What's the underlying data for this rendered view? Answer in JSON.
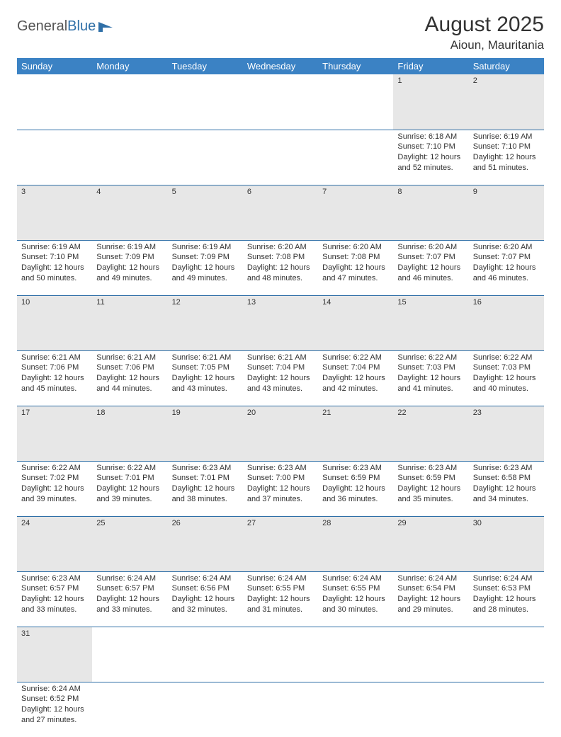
{
  "brand": {
    "part1": "General",
    "part2": "Blue"
  },
  "title": "August 2025",
  "location": "Aioun, Mauritania",
  "colors": {
    "header_bg": "#3b82c4",
    "header_text": "#ffffff",
    "daynum_bg": "#e7e7e7",
    "divider": "#2f6fa7",
    "text": "#333333",
    "background": "#ffffff"
  },
  "fonts": {
    "title_size": 30,
    "location_size": 17,
    "th_size": 13,
    "cell_size": 11
  },
  "weekdays": [
    "Sunday",
    "Monday",
    "Tuesday",
    "Wednesday",
    "Thursday",
    "Friday",
    "Saturday"
  ],
  "weeks": [
    [
      null,
      null,
      null,
      null,
      null,
      {
        "d": "1",
        "sr": "Sunrise: 6:18 AM",
        "ss": "Sunset: 7:10 PM",
        "dl1": "Daylight: 12 hours",
        "dl2": "and 52 minutes."
      },
      {
        "d": "2",
        "sr": "Sunrise: 6:19 AM",
        "ss": "Sunset: 7:10 PM",
        "dl1": "Daylight: 12 hours",
        "dl2": "and 51 minutes."
      }
    ],
    [
      {
        "d": "3",
        "sr": "Sunrise: 6:19 AM",
        "ss": "Sunset: 7:10 PM",
        "dl1": "Daylight: 12 hours",
        "dl2": "and 50 minutes."
      },
      {
        "d": "4",
        "sr": "Sunrise: 6:19 AM",
        "ss": "Sunset: 7:09 PM",
        "dl1": "Daylight: 12 hours",
        "dl2": "and 49 minutes."
      },
      {
        "d": "5",
        "sr": "Sunrise: 6:19 AM",
        "ss": "Sunset: 7:09 PM",
        "dl1": "Daylight: 12 hours",
        "dl2": "and 49 minutes."
      },
      {
        "d": "6",
        "sr": "Sunrise: 6:20 AM",
        "ss": "Sunset: 7:08 PM",
        "dl1": "Daylight: 12 hours",
        "dl2": "and 48 minutes."
      },
      {
        "d": "7",
        "sr": "Sunrise: 6:20 AM",
        "ss": "Sunset: 7:08 PM",
        "dl1": "Daylight: 12 hours",
        "dl2": "and 47 minutes."
      },
      {
        "d": "8",
        "sr": "Sunrise: 6:20 AM",
        "ss": "Sunset: 7:07 PM",
        "dl1": "Daylight: 12 hours",
        "dl2": "and 46 minutes."
      },
      {
        "d": "9",
        "sr": "Sunrise: 6:20 AM",
        "ss": "Sunset: 7:07 PM",
        "dl1": "Daylight: 12 hours",
        "dl2": "and 46 minutes."
      }
    ],
    [
      {
        "d": "10",
        "sr": "Sunrise: 6:21 AM",
        "ss": "Sunset: 7:06 PM",
        "dl1": "Daylight: 12 hours",
        "dl2": "and 45 minutes."
      },
      {
        "d": "11",
        "sr": "Sunrise: 6:21 AM",
        "ss": "Sunset: 7:06 PM",
        "dl1": "Daylight: 12 hours",
        "dl2": "and 44 minutes."
      },
      {
        "d": "12",
        "sr": "Sunrise: 6:21 AM",
        "ss": "Sunset: 7:05 PM",
        "dl1": "Daylight: 12 hours",
        "dl2": "and 43 minutes."
      },
      {
        "d": "13",
        "sr": "Sunrise: 6:21 AM",
        "ss": "Sunset: 7:04 PM",
        "dl1": "Daylight: 12 hours",
        "dl2": "and 43 minutes."
      },
      {
        "d": "14",
        "sr": "Sunrise: 6:22 AM",
        "ss": "Sunset: 7:04 PM",
        "dl1": "Daylight: 12 hours",
        "dl2": "and 42 minutes."
      },
      {
        "d": "15",
        "sr": "Sunrise: 6:22 AM",
        "ss": "Sunset: 7:03 PM",
        "dl1": "Daylight: 12 hours",
        "dl2": "and 41 minutes."
      },
      {
        "d": "16",
        "sr": "Sunrise: 6:22 AM",
        "ss": "Sunset: 7:03 PM",
        "dl1": "Daylight: 12 hours",
        "dl2": "and 40 minutes."
      }
    ],
    [
      {
        "d": "17",
        "sr": "Sunrise: 6:22 AM",
        "ss": "Sunset: 7:02 PM",
        "dl1": "Daylight: 12 hours",
        "dl2": "and 39 minutes."
      },
      {
        "d": "18",
        "sr": "Sunrise: 6:22 AM",
        "ss": "Sunset: 7:01 PM",
        "dl1": "Daylight: 12 hours",
        "dl2": "and 39 minutes."
      },
      {
        "d": "19",
        "sr": "Sunrise: 6:23 AM",
        "ss": "Sunset: 7:01 PM",
        "dl1": "Daylight: 12 hours",
        "dl2": "and 38 minutes."
      },
      {
        "d": "20",
        "sr": "Sunrise: 6:23 AM",
        "ss": "Sunset: 7:00 PM",
        "dl1": "Daylight: 12 hours",
        "dl2": "and 37 minutes."
      },
      {
        "d": "21",
        "sr": "Sunrise: 6:23 AM",
        "ss": "Sunset: 6:59 PM",
        "dl1": "Daylight: 12 hours",
        "dl2": "and 36 minutes."
      },
      {
        "d": "22",
        "sr": "Sunrise: 6:23 AM",
        "ss": "Sunset: 6:59 PM",
        "dl1": "Daylight: 12 hours",
        "dl2": "and 35 minutes."
      },
      {
        "d": "23",
        "sr": "Sunrise: 6:23 AM",
        "ss": "Sunset: 6:58 PM",
        "dl1": "Daylight: 12 hours",
        "dl2": "and 34 minutes."
      }
    ],
    [
      {
        "d": "24",
        "sr": "Sunrise: 6:23 AM",
        "ss": "Sunset: 6:57 PM",
        "dl1": "Daylight: 12 hours",
        "dl2": "and 33 minutes."
      },
      {
        "d": "25",
        "sr": "Sunrise: 6:24 AM",
        "ss": "Sunset: 6:57 PM",
        "dl1": "Daylight: 12 hours",
        "dl2": "and 33 minutes."
      },
      {
        "d": "26",
        "sr": "Sunrise: 6:24 AM",
        "ss": "Sunset: 6:56 PM",
        "dl1": "Daylight: 12 hours",
        "dl2": "and 32 minutes."
      },
      {
        "d": "27",
        "sr": "Sunrise: 6:24 AM",
        "ss": "Sunset: 6:55 PM",
        "dl1": "Daylight: 12 hours",
        "dl2": "and 31 minutes."
      },
      {
        "d": "28",
        "sr": "Sunrise: 6:24 AM",
        "ss": "Sunset: 6:55 PM",
        "dl1": "Daylight: 12 hours",
        "dl2": "and 30 minutes."
      },
      {
        "d": "29",
        "sr": "Sunrise: 6:24 AM",
        "ss": "Sunset: 6:54 PM",
        "dl1": "Daylight: 12 hours",
        "dl2": "and 29 minutes."
      },
      {
        "d": "30",
        "sr": "Sunrise: 6:24 AM",
        "ss": "Sunset: 6:53 PM",
        "dl1": "Daylight: 12 hours",
        "dl2": "and 28 minutes."
      }
    ],
    [
      {
        "d": "31",
        "sr": "Sunrise: 6:24 AM",
        "ss": "Sunset: 6:52 PM",
        "dl1": "Daylight: 12 hours",
        "dl2": "and 27 minutes."
      },
      null,
      null,
      null,
      null,
      null,
      null
    ]
  ]
}
